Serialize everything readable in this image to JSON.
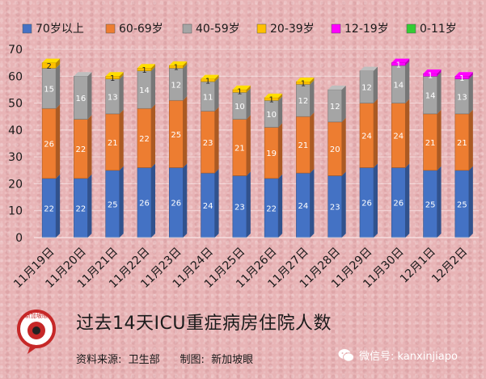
{
  "chart_data": {
    "type": "bar",
    "stacked": true,
    "categories": [
      "11月19日",
      "11月20日",
      "11月21日",
      "11月22日",
      "11月23日",
      "11月24日",
      "11月25日",
      "11月26日",
      "11月27日",
      "11月28日",
      "11月29日",
      "11月30日",
      "12月1日",
      "12月2日"
    ],
    "series": [
      {
        "name": "70岁以上",
        "color": "#4472c4",
        "values": [
          22,
          22,
          25,
          26,
          26,
          24,
          23,
          22,
          24,
          23,
          26,
          26,
          25,
          25
        ]
      },
      {
        "name": "60-69岁",
        "color": "#ed7d31",
        "values": [
          26,
          22,
          21,
          22,
          25,
          23,
          21,
          19,
          21,
          20,
          24,
          24,
          21,
          21
        ]
      },
      {
        "name": "40-59岁",
        "color": "#a5a5a5",
        "values": [
          15,
          16,
          13,
          14,
          12,
          11,
          10,
          10,
          12,
          12,
          12,
          14,
          14,
          13
        ]
      },
      {
        "name": "20-39岁",
        "color": "#ffc000",
        "values": [
          2,
          0,
          1,
          1,
          1,
          1,
          1,
          1,
          1,
          0,
          0,
          0,
          0,
          0
        ]
      },
      {
        "name": "12-19岁",
        "color": "#ff00ff",
        "values": [
          0,
          0,
          0,
          0,
          0,
          0,
          0,
          0,
          0,
          0,
          0,
          1,
          1,
          1
        ]
      },
      {
        "name": "0-11岁",
        "color": "#33cc33",
        "values": [
          0,
          0,
          0,
          0,
          0,
          0,
          0,
          0,
          0,
          0,
          0,
          0,
          0,
          0
        ]
      }
    ],
    "ylim": [
      0,
      70
    ],
    "yticks": [
      0,
      10,
      20,
      30,
      40,
      50,
      60,
      70
    ],
    "legend_position": "top",
    "grid": true
  },
  "footer": {
    "title": "过去14天ICU重症病房住院人数",
    "source": "资料来源:  卫生部      制图:  新加坡眼",
    "wechat": "微信号: kanxinjiapo",
    "logo_text": "新加坡眼"
  },
  "icons": {
    "logo": "news-logo-icon",
    "wechat": "wechat-icon"
  }
}
